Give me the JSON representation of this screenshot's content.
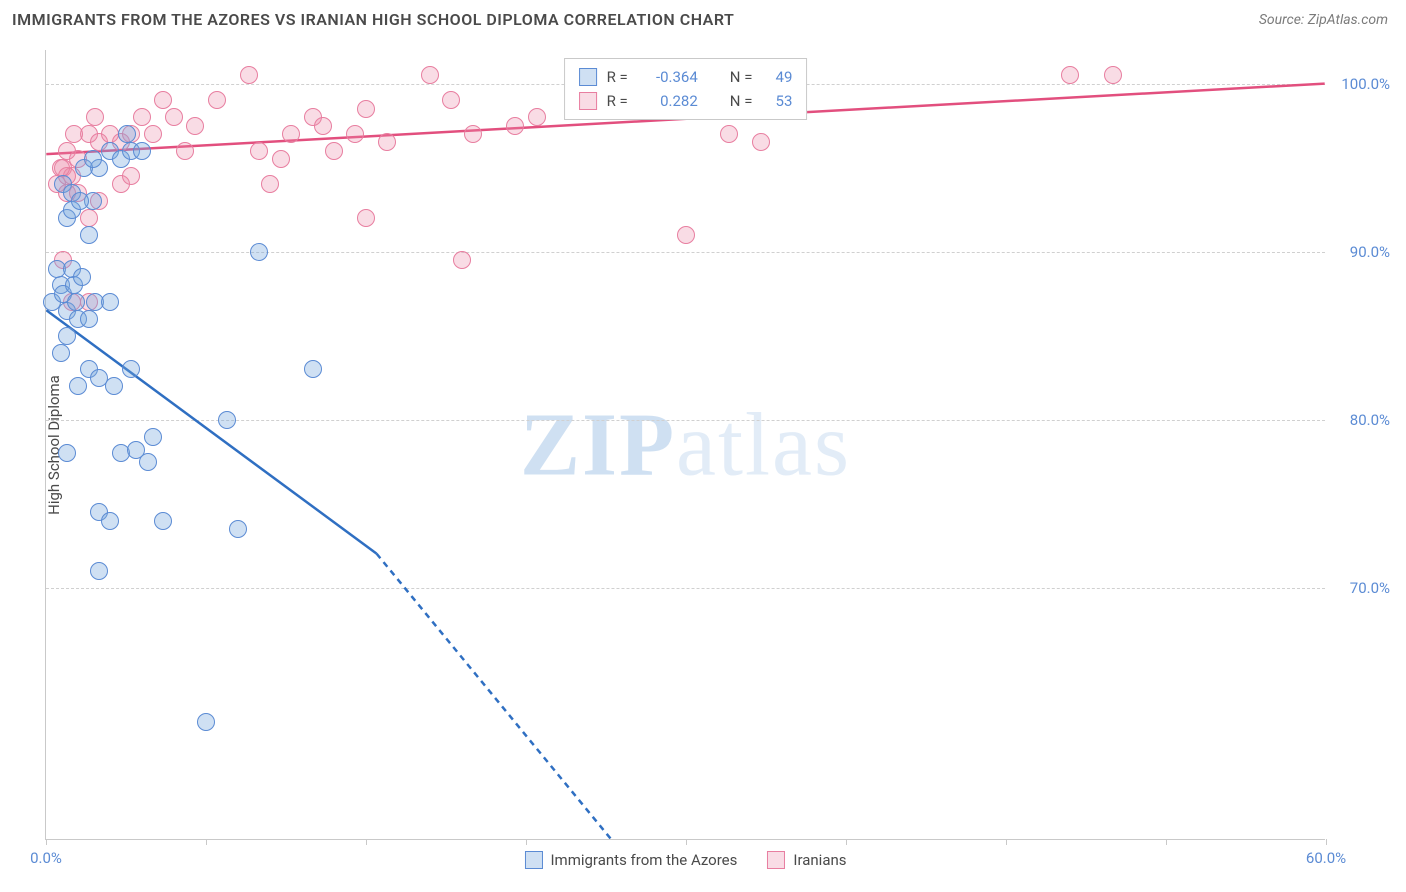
{
  "header": {
    "title": "IMMIGRANTS FROM THE AZORES VS IRANIAN HIGH SCHOOL DIPLOMA CORRELATION CHART",
    "source": "Source: ZipAtlas.com"
  },
  "chart": {
    "type": "scatter",
    "plot_background": "#ffffff",
    "grid_color": "#d0d0d0",
    "axis_color": "#c9c9c9",
    "y_label": "High School Diploma",
    "y_label_fontsize": 15,
    "tick_label_color": "#5b8bd4",
    "xlim": [
      0,
      60
    ],
    "ylim": [
      55,
      102
    ],
    "x_ticks": [
      0,
      7.5,
      15,
      22.5,
      30,
      37.5,
      45,
      52.5,
      60
    ],
    "x_tick_labels": {
      "0": "0.0%",
      "60": "60.0%"
    },
    "y_ticks": [
      70,
      80,
      90,
      100
    ],
    "y_tick_labels": {
      "70": "70.0%",
      "80": "80.0%",
      "90": "90.0%",
      "100": "100.0%"
    },
    "watermark": {
      "bold": "ZIP",
      "light": "atlas",
      "color_bold": "#cfe0f2",
      "color_light": "#e2ecf7",
      "fontsize": 90
    },
    "series": {
      "azores": {
        "label": "Immigrants from the Azores",
        "marker_fill": "rgba(117,167,222,0.35)",
        "marker_stroke": "#5b8bd4",
        "marker_radius": 9,
        "R": "-0.364",
        "N": "49",
        "trend": {
          "x1": 0,
          "y1": 86.5,
          "x2_solid": 15.5,
          "y2_solid": 72.0,
          "x2_dash": 26.5,
          "y2_dash": 55.0,
          "color": "#2f6fc2",
          "width": 2.5
        },
        "points": [
          [
            0.3,
            87
          ],
          [
            0.5,
            89
          ],
          [
            0.7,
            88
          ],
          [
            0.8,
            87.5
          ],
          [
            1.0,
            86.5
          ],
          [
            1.2,
            89
          ],
          [
            1.3,
            88
          ],
          [
            1.4,
            87
          ],
          [
            1.0,
            92
          ],
          [
            1.2,
            92.5
          ],
          [
            1.5,
            86
          ],
          [
            1.7,
            88.5
          ],
          [
            2.0,
            91
          ],
          [
            2.2,
            93
          ],
          [
            2.5,
            95
          ],
          [
            2.0,
            86
          ],
          [
            2.3,
            87
          ],
          [
            3.0,
            96
          ],
          [
            3.5,
            95.5
          ],
          [
            4.0,
            96
          ],
          [
            3.0,
            87
          ],
          [
            2.0,
            83
          ],
          [
            2.5,
            82.5
          ],
          [
            3.2,
            82
          ],
          [
            4.0,
            83
          ],
          [
            3.5,
            78
          ],
          [
            4.2,
            78.2
          ],
          [
            4.8,
            77.5
          ],
          [
            5.0,
            79
          ],
          [
            1.5,
            82
          ],
          [
            1.0,
            78
          ],
          [
            2.5,
            74.5
          ],
          [
            3.0,
            74
          ],
          [
            5.5,
            74
          ],
          [
            2.5,
            71
          ],
          [
            8.5,
            80
          ],
          [
            12.5,
            83
          ],
          [
            10.0,
            90
          ],
          [
            9.0,
            73.5
          ],
          [
            7.5,
            62
          ],
          [
            1.8,
            95
          ],
          [
            2.2,
            95.5
          ],
          [
            3.8,
            97
          ],
          [
            4.5,
            96
          ],
          [
            0.8,
            94
          ],
          [
            1.2,
            93.5
          ],
          [
            1.6,
            93
          ],
          [
            1.0,
            85
          ],
          [
            0.7,
            84
          ]
        ]
      },
      "iranians": {
        "label": "Iranians",
        "marker_fill": "rgba(235,138,168,0.3)",
        "marker_stroke": "#e87ea0",
        "marker_radius": 9,
        "R": "0.282",
        "N": "53",
        "trend": {
          "x1": 0,
          "y1": 95.8,
          "x2_solid": 60,
          "y2_solid": 100.0,
          "color": "#e24f7e",
          "width": 2.5
        },
        "points": [
          [
            0.5,
            94
          ],
          [
            0.8,
            95
          ],
          [
            1.0,
            93.5
          ],
          [
            1.2,
            94.5
          ],
          [
            1.5,
            93.5
          ],
          [
            2.0,
            92
          ],
          [
            2.5,
            93
          ],
          [
            1.0,
            96
          ],
          [
            1.5,
            95.5
          ],
          [
            2.0,
            97
          ],
          [
            2.5,
            96.5
          ],
          [
            3.0,
            97
          ],
          [
            3.5,
            96.5
          ],
          [
            4.0,
            97
          ],
          [
            4.5,
            98
          ],
          [
            5.0,
            97
          ],
          [
            5.5,
            99
          ],
          [
            6.0,
            98
          ],
          [
            7.0,
            97.5
          ],
          [
            8.0,
            99
          ],
          [
            9.5,
            100.5
          ],
          [
            10.0,
            96
          ],
          [
            11.0,
            95.5
          ],
          [
            11.5,
            97
          ],
          [
            12.5,
            98
          ],
          [
            13.0,
            97.5
          ],
          [
            13.5,
            96
          ],
          [
            14.5,
            97
          ],
          [
            15.0,
            98.5
          ],
          [
            16.0,
            96.5
          ],
          [
            18.0,
            100.5
          ],
          [
            19.0,
            99
          ],
          [
            20.0,
            97
          ],
          [
            22.0,
            97.5
          ],
          [
            23.0,
            98
          ],
          [
            0.8,
            89.5
          ],
          [
            1.2,
            87
          ],
          [
            2.0,
            87
          ],
          [
            15.0,
            92
          ],
          [
            19.5,
            89.5
          ],
          [
            30.0,
            91
          ],
          [
            32.0,
            97
          ],
          [
            33.5,
            96.5
          ],
          [
            48.0,
            100.5
          ],
          [
            50.0,
            100.5
          ],
          [
            3.5,
            94
          ],
          [
            4.0,
            94.5
          ],
          [
            10.5,
            94
          ],
          [
            6.5,
            96
          ],
          [
            1.3,
            97
          ],
          [
            2.3,
            98
          ],
          [
            1.0,
            94.5
          ],
          [
            0.7,
            95
          ]
        ]
      }
    },
    "stats_legend": {
      "rows": [
        {
          "swatch": "blue",
          "R_label": "R =",
          "R_val": "-0.364",
          "N_label": "N =",
          "N_val": "49"
        },
        {
          "swatch": "pink",
          "R_label": "R =",
          "R_val": "0.282",
          "N_label": "N =",
          "N_val": "53"
        }
      ]
    },
    "bottom_legend": {
      "items": [
        {
          "swatch": "blue",
          "label": "Immigrants from the Azores"
        },
        {
          "swatch": "pink",
          "label": "Iranians"
        }
      ]
    }
  }
}
